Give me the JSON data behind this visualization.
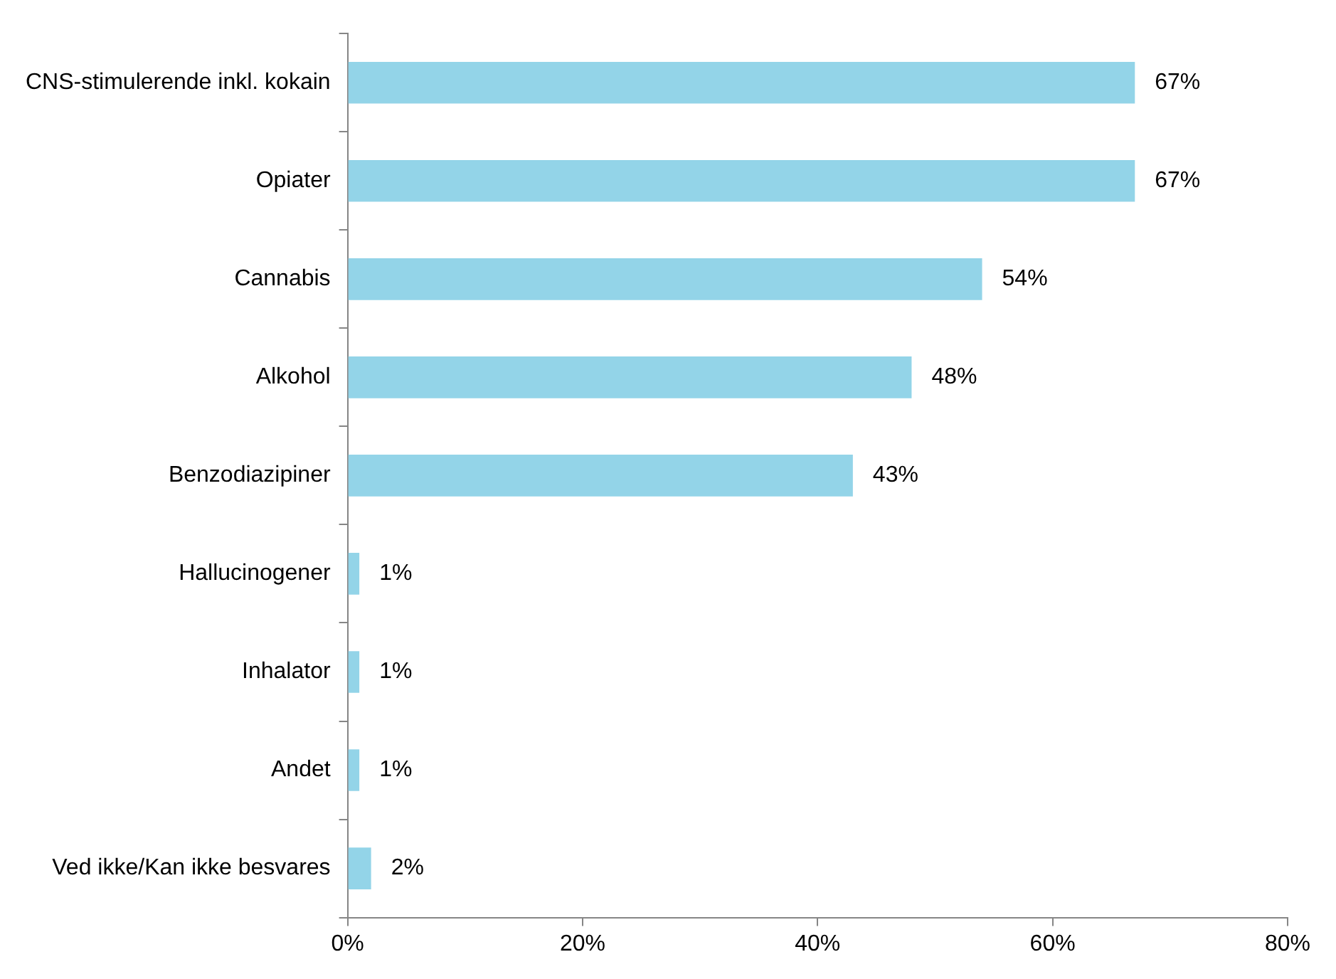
{
  "chart_data": {
    "type": "bar",
    "orientation": "horizontal",
    "categories": [
      "CNS-stimulerende inkl. kokain",
      "Opiater",
      "Cannabis",
      "Alkohol",
      "Benzodiazipiner",
      "Hallucinogener",
      "Inhalator",
      "Andet",
      "Ved ikke/Kan ikke besvares"
    ],
    "values": [
      67,
      67,
      54,
      48,
      43,
      1,
      1,
      1,
      2
    ],
    "value_labels": [
      "67%",
      "67%",
      "54%",
      "48%",
      "43%",
      "1%",
      "1%",
      "1%",
      "2%"
    ],
    "color": "#93d4e8",
    "xlim": [
      0,
      80
    ],
    "xticks": [
      {
        "value": 0,
        "label": "0%"
      },
      {
        "value": 20,
        "label": "20%"
      },
      {
        "value": 40,
        "label": "40%"
      },
      {
        "value": 60,
        "label": "60%"
      },
      {
        "value": 80,
        "label": "80%"
      }
    ],
    "grid": false,
    "legend": false
  }
}
